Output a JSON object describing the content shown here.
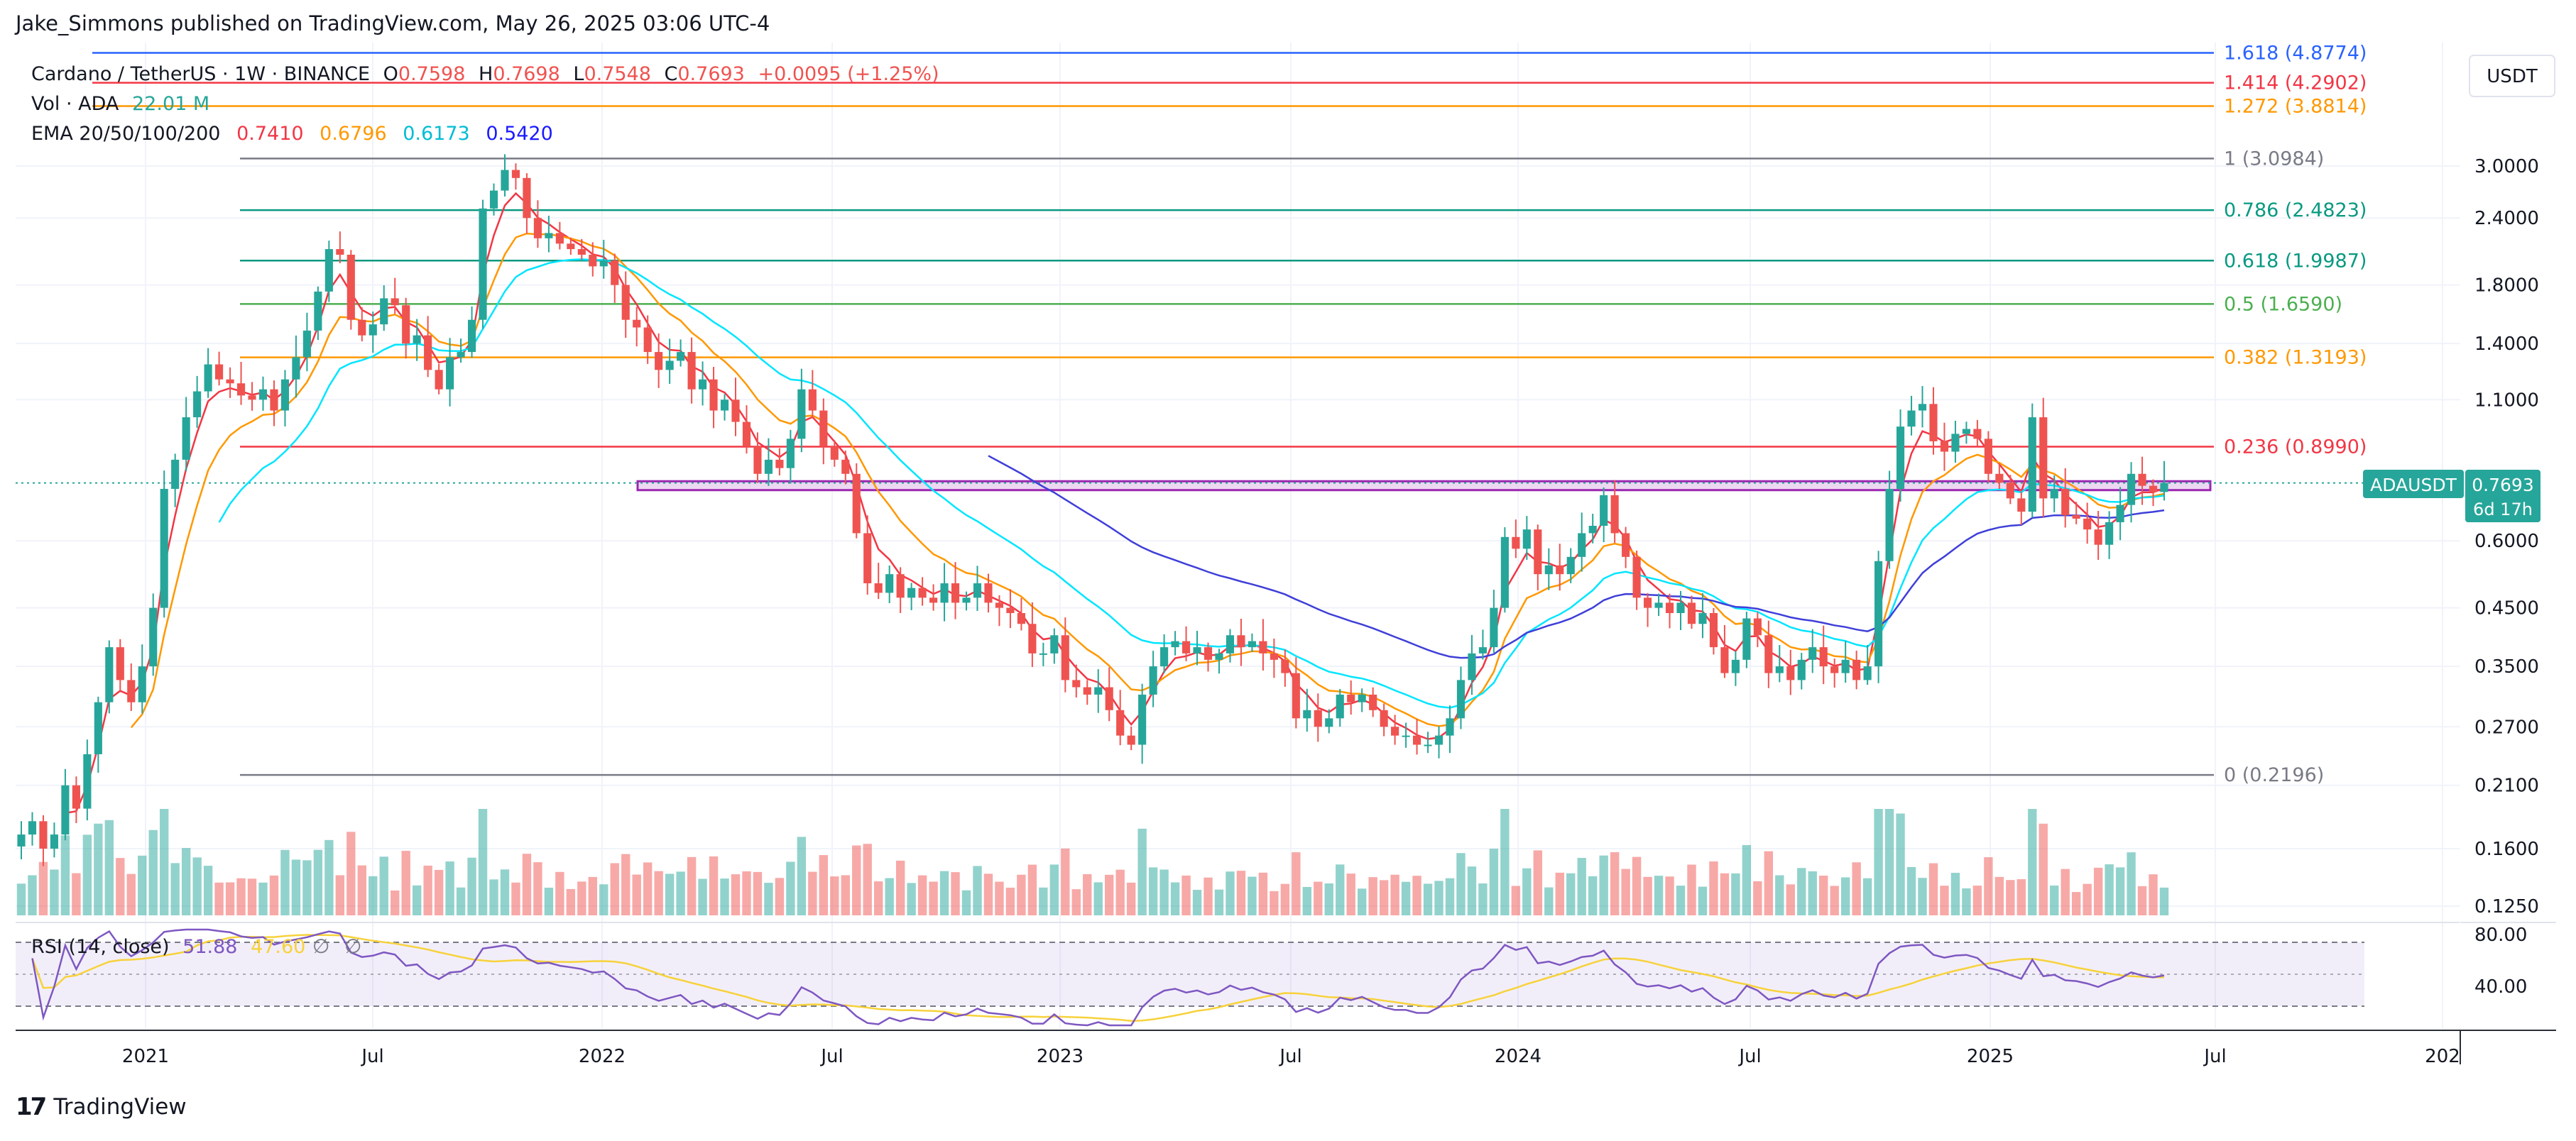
{
  "header": {
    "publisher": "Jake_Simmons published on TradingView.com, May 26, 2025 03:06 UTC-4"
  },
  "legend": {
    "symbol": "Cardano / TetherUS · 1W · BINANCE",
    "open_label": "O",
    "open": "0.7598",
    "high_label": "H",
    "high": "0.7698",
    "low_label": "L",
    "low": "0.7548",
    "close_label": "C",
    "close": "0.7693",
    "change": "+0.0095 (+1.25%)",
    "vol_label": "Vol · ADA",
    "vol_value": "22.01 M",
    "ema_label": "EMA 20/50/100/200",
    "ema_values": [
      {
        "value": "0.7410",
        "color": "#f23645"
      },
      {
        "value": "0.6796",
        "color": "#ff9800"
      },
      {
        "value": "0.6173",
        "color": "#00e5ff"
      },
      {
        "value": "0.5420",
        "color": "#1a1aff"
      }
    ]
  },
  "currency_button": "USDT",
  "price_badge": {
    "symbol": "ADAUSDT",
    "price": "0.7693",
    "countdown": "6d 17h",
    "color": "#26a69a"
  },
  "rsi": {
    "label": "RSI (14, close)",
    "value": "51.88",
    "ma_value": "47.60",
    "upper": "80.00",
    "lower": "40.00"
  },
  "footer": {
    "brand": "TradingView"
  },
  "colors": {
    "up": "#26a69a",
    "down": "#ef5350",
    "rsi": "#7e57c2",
    "rsi_ma": "#f7d23b"
  },
  "chart_data": {
    "type": "candlestick",
    "title": "Cardano / TetherUS · 1W · BINANCE",
    "x_axis_ticks": [
      "2021",
      "Jul",
      "2022",
      "Jul",
      "2023",
      "Jul",
      "2024",
      "Jul",
      "2025",
      "Jul",
      "202"
    ],
    "y_axis_scale": "log",
    "y_axis_ticks": [
      "3.0000",
      "2.4000",
      "1.8000",
      "1.4000",
      "1.1000",
      "0.6000",
      "0.4500",
      "0.3500",
      "0.2700",
      "0.2100",
      "0.1600",
      "0.1250"
    ],
    "y_tick_values": [
      3.0,
      2.4,
      1.8,
      1.4,
      1.1,
      0.6,
      0.45,
      0.35,
      0.27,
      0.21,
      0.16,
      0.125
    ],
    "fib_levels": [
      {
        "label": "1.618 (4.8774)",
        "value": 4.8774,
        "color": "#2962ff"
      },
      {
        "label": "1.414 (4.2902)",
        "value": 4.2902,
        "color": "#f23645"
      },
      {
        "label": "1.272 (3.8814)",
        "value": 3.8814,
        "color": "#ff9800"
      },
      {
        "label": "1 (3.0984)",
        "value": 3.0984,
        "color": "#787b86"
      },
      {
        "label": "0.786 (2.4823)",
        "value": 2.4823,
        "color": "#089981"
      },
      {
        "label": "0.618 (1.9987)",
        "value": 1.9987,
        "color": "#089981"
      },
      {
        "label": "0.5 (1.6590)",
        "value": 1.659,
        "color": "#4caf50"
      },
      {
        "label": "0.382 (1.3193)",
        "value": 1.3193,
        "color": "#ff9800"
      },
      {
        "label": "0.236 (0.8990)",
        "value": 0.899,
        "color": "#f23645"
      },
      {
        "label": "0 (0.2196)",
        "value": 0.2196,
        "color": "#787b86"
      }
    ],
    "support_zone": {
      "low": 0.746,
      "high": 0.775,
      "color": "#9c27b0"
    },
    "closes": [
      0.17,
      0.18,
      0.16,
      0.17,
      0.21,
      0.19,
      0.24,
      0.3,
      0.38,
      0.33,
      0.3,
      0.35,
      0.45,
      0.75,
      0.85,
      1.02,
      1.14,
      1.28,
      1.2,
      1.18,
      1.12,
      1.1,
      1.15,
      1.05,
      1.2,
      1.32,
      1.48,
      1.75,
      2.1,
      2.05,
      1.55,
      1.45,
      1.52,
      1.7,
      1.65,
      1.4,
      1.45,
      1.25,
      1.15,
      1.32,
      1.35,
      1.55,
      2.5,
      2.7,
      2.95,
      2.85,
      2.4,
      2.2,
      2.25,
      2.15,
      2.1,
      2.05,
      1.95,
      2.0,
      1.8,
      1.55,
      1.5,
      1.35,
      1.25,
      1.3,
      1.35,
      1.15,
      1.2,
      1.05,
      1.1,
      1.0,
      0.9,
      0.8,
      0.85,
      0.82,
      0.93,
      1.15,
      1.05,
      0.9,
      0.85,
      0.8,
      0.62,
      0.5,
      0.48,
      0.52,
      0.47,
      0.49,
      0.47,
      0.46,
      0.5,
      0.46,
      0.47,
      0.5,
      0.46,
      0.45,
      0.44,
      0.42,
      0.37,
      0.37,
      0.4,
      0.33,
      0.32,
      0.31,
      0.32,
      0.29,
      0.26,
      0.25,
      0.31,
      0.35,
      0.38,
      0.39,
      0.37,
      0.38,
      0.36,
      0.37,
      0.4,
      0.38,
      0.39,
      0.37,
      0.36,
      0.34,
      0.28,
      0.29,
      0.27,
      0.28,
      0.31,
      0.3,
      0.31,
      0.29,
      0.27,
      0.26,
      0.26,
      0.25,
      0.25,
      0.26,
      0.28,
      0.33,
      0.37,
      0.38,
      0.45,
      0.61,
      0.58,
      0.63,
      0.52,
      0.54,
      0.52,
      0.56,
      0.62,
      0.64,
      0.73,
      0.62,
      0.56,
      0.47,
      0.45,
      0.46,
      0.44,
      0.46,
      0.42,
      0.44,
      0.38,
      0.34,
      0.36,
      0.43,
      0.4,
      0.34,
      0.35,
      0.33,
      0.36,
      0.38,
      0.35,
      0.34,
      0.36,
      0.33,
      0.35,
      0.55,
      0.75,
      0.98,
      1.05,
      1.08,
      0.92,
      0.88,
      0.95,
      0.97,
      0.93,
      0.8,
      0.77,
      0.72,
      0.68,
      1.02,
      0.72,
      0.75,
      0.67,
      0.66,
      0.63,
      0.59,
      0.65,
      0.7,
      0.8,
      0.76,
      0.74,
      0.7693
    ]
  }
}
